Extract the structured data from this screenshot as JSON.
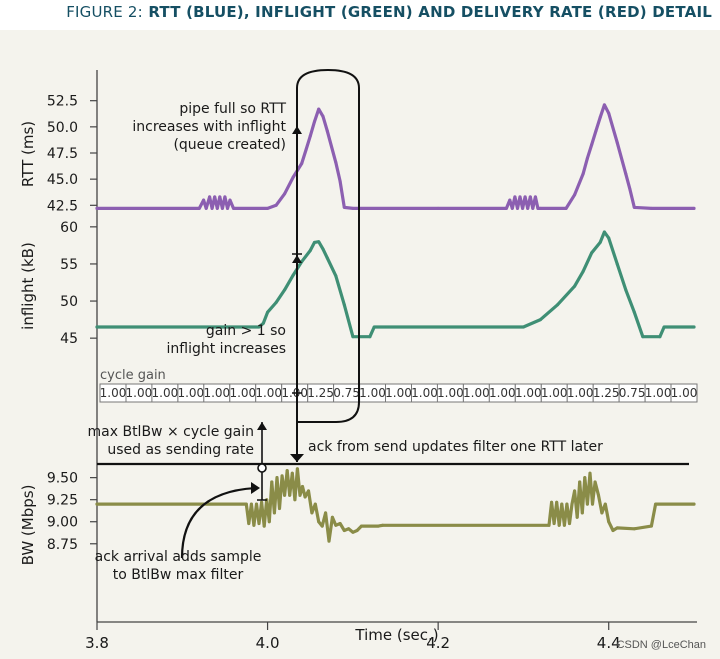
{
  "figure": {
    "label_prefix": "FIGURE 2:",
    "label_title": "RTT (BLUE), INFLIGHT (GREEN) AND DELIVERY RATE (RED) DETAIL"
  },
  "watermark": "CSDN @LceChan",
  "colors": {
    "rtt": "#8c5fb1",
    "inflight": "#3f8f75",
    "bw": "#8a8c48",
    "panel": "#f4f3ed",
    "title": "#154f63"
  },
  "annotations": {
    "pipe_full": [
      "pipe full so RTT",
      "increases with inflight",
      "(queue created)"
    ],
    "gain": [
      "gain > 1 so",
      "inflight increases"
    ],
    "max_btlbw": [
      "max BtlBw × cycle gain",
      "used as sending rate"
    ],
    "ack_send": "ack from send updates filter one RTT later",
    "ack_arrival": [
      "ack arrival adds sample",
      "to BtlBw max filter"
    ]
  },
  "chart_data": [
    {
      "type": "line",
      "ylabel": "RTT (ms)",
      "y_ticks": [
        "52.5",
        "50.0",
        "47.5",
        "45.0",
        "42.5"
      ],
      "ylim": [
        41.0,
        54.0
      ],
      "series": [
        {
          "x": [
            3.8,
            3.92,
            3.925,
            3.928,
            3.932,
            3.935,
            3.938,
            3.941,
            3.944,
            3.947,
            3.95,
            3.953,
            3.956,
            3.96,
            4.0,
            4.01,
            4.02,
            4.03,
            4.04,
            4.045,
            4.05,
            4.055,
            4.06,
            4.065,
            4.07,
            4.08,
            4.085,
            4.09,
            4.1,
            4.2,
            4.28,
            4.284,
            4.287,
            4.29,
            4.293,
            4.296,
            4.299,
            4.302,
            4.305,
            4.308,
            4.311,
            4.314,
            4.317,
            4.32,
            4.35,
            4.36,
            4.37,
            4.375,
            4.38,
            4.385,
            4.39,
            4.395,
            4.4,
            4.41,
            4.42,
            4.425,
            4.43,
            4.45,
            4.5
          ],
          "values": [
            42.2,
            42.2,
            43.0,
            42.2,
            43.3,
            42.2,
            43.3,
            42.2,
            43.3,
            42.2,
            43.3,
            42.2,
            43.0,
            42.2,
            42.2,
            42.5,
            43.6,
            45.2,
            46.5,
            47.8,
            49.1,
            50.5,
            51.7,
            51.0,
            49.6,
            46.6,
            44.8,
            42.3,
            42.2,
            42.2,
            42.2,
            43.0,
            42.2,
            43.3,
            42.2,
            43.3,
            42.2,
            43.3,
            42.2,
            43.3,
            42.2,
            43.3,
            42.2,
            42.2,
            42.2,
            43.5,
            45.5,
            47.0,
            48.3,
            49.6,
            50.9,
            52.1,
            51.3,
            48.5,
            45.5,
            44.0,
            42.3,
            42.2,
            42.2
          ]
        }
      ]
    },
    {
      "type": "line",
      "ylabel": "inflight (kB)",
      "y_ticks": [
        "60",
        "55",
        "50",
        "45"
      ],
      "ylim": [
        43.0,
        62.0
      ],
      "series": [
        {
          "x": [
            3.8,
            3.99,
            3.995,
            4.0,
            4.01,
            4.02,
            4.03,
            4.04,
            4.05,
            4.055,
            4.06,
            4.065,
            4.07,
            4.08,
            4.09,
            4.1,
            4.12,
            4.125,
            4.14,
            4.3,
            4.32,
            4.34,
            4.36,
            4.37,
            4.38,
            4.39,
            4.395,
            4.4,
            4.41,
            4.42,
            4.43,
            4.44,
            4.46,
            4.465,
            4.5
          ],
          "values": [
            46.5,
            46.5,
            47.0,
            48.5,
            49.8,
            51.5,
            53.5,
            55.3,
            56.8,
            57.9,
            58.0,
            57.0,
            55.8,
            53.4,
            49.5,
            45.2,
            45.2,
            46.5,
            46.5,
            46.5,
            47.5,
            49.5,
            52.0,
            54.0,
            56.5,
            57.9,
            59.3,
            58.5,
            55.0,
            51.5,
            48.5,
            45.2,
            45.2,
            46.5,
            46.5
          ]
        }
      ]
    },
    {
      "type": "table",
      "title": "cycle gain",
      "rows": [
        [
          "1.00",
          "1.00",
          "1.00",
          "1.00",
          "1.00",
          "1.00",
          "1.00",
          "1.00",
          "1.25",
          "0.75",
          "1.00",
          "1.00",
          "1.00",
          "1.00",
          "1.00",
          "1.00",
          "1.00",
          "1.00",
          "1.00",
          "1.25",
          "0.75",
          "1.00",
          "1.00"
        ]
      ]
    },
    {
      "type": "line",
      "ylabel": "BW (Mbps)",
      "xlabel": "Time (sec.)",
      "x_ticks": [
        "3.8",
        "4.0",
        "4.2",
        "4.4"
      ],
      "xlim": [
        3.8,
        4.5
      ],
      "y_ticks": [
        "9.50",
        "9.25",
        "9.00",
        "8.75"
      ],
      "ylim": [
        8.6,
        9.7
      ],
      "series": [
        {
          "x": [
            3.8,
            3.975,
            3.978,
            3.981,
            3.984,
            3.987,
            3.99,
            3.993,
            3.996,
            3.999,
            4.002,
            4.005,
            4.008,
            4.011,
            4.014,
            4.017,
            4.02,
            4.023,
            4.026,
            4.029,
            4.032,
            4.035,
            4.038,
            4.041,
            4.044,
            4.048,
            4.052,
            4.056,
            4.06,
            4.064,
            4.068,
            4.072,
            4.076,
            4.08,
            4.085,
            4.09,
            4.095,
            4.1,
            4.105,
            4.11,
            4.13,
            4.135,
            4.33,
            4.333,
            4.336,
            4.339,
            4.342,
            4.345,
            4.348,
            4.351,
            4.354,
            4.357,
            4.36,
            4.363,
            4.366,
            4.369,
            4.372,
            4.375,
            4.378,
            4.381,
            4.384,
            4.388,
            4.392,
            4.396,
            4.4,
            4.405,
            4.41,
            4.43,
            4.45,
            4.455,
            4.5
          ],
          "values": [
            9.2,
            9.2,
            8.98,
            9.2,
            8.96,
            9.2,
            8.98,
            9.22,
            8.95,
            9.25,
            9.0,
            9.45,
            9.1,
            9.5,
            9.15,
            9.52,
            9.3,
            9.58,
            9.3,
            9.55,
            9.25,
            9.6,
            9.3,
            9.4,
            9.28,
            9.35,
            9.1,
            9.2,
            9.0,
            8.95,
            9.1,
            8.78,
            9.05,
            8.96,
            8.98,
            8.9,
            8.92,
            8.88,
            8.9,
            8.95,
            8.95,
            8.96,
            8.96,
            9.22,
            8.98,
            9.22,
            8.96,
            9.2,
            8.96,
            9.2,
            8.98,
            9.2,
            9.35,
            9.05,
            9.45,
            9.1,
            9.5,
            9.2,
            9.55,
            9.2,
            9.45,
            9.3,
            9.1,
            9.2,
            9.0,
            8.9,
            8.93,
            8.92,
            8.95,
            9.2,
            9.2
          ]
        }
      ]
    }
  ]
}
